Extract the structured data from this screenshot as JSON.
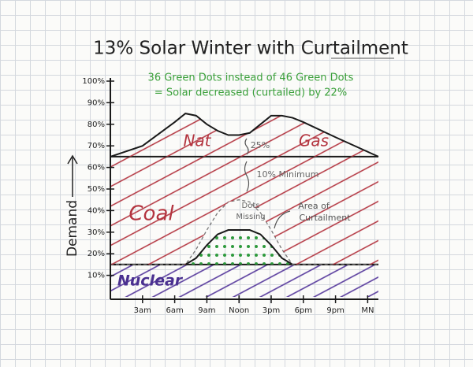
{
  "chart_data": {
    "type": "stacked_area",
    "title": "13% Solar Winter with Curtailment",
    "subtitle": [
      "36 Green Dots instead of 46 Green Dots",
      "= Solar decreased (curtailed) by 22%"
    ],
    "y_label": "Demand",
    "x": [
      0,
      3,
      6,
      7,
      8,
      9,
      10,
      11,
      12,
      13,
      14,
      15,
      16,
      17,
      18,
      21,
      25
    ],
    "xlim": [
      0,
      25
    ],
    "xticks": [
      {
        "value": 3,
        "label": "3am"
      },
      {
        "value": 6,
        "label": "6am"
      },
      {
        "value": 9,
        "label": "9am"
      },
      {
        "value": 12,
        "label": "Noon"
      },
      {
        "value": 15,
        "label": "3pm"
      },
      {
        "value": 18,
        "label": "6pm"
      },
      {
        "value": 21,
        "label": "9pm"
      },
      {
        "value": 24,
        "label": "MN"
      }
    ],
    "ylim": [
      0,
      100
    ],
    "yticks": [
      {
        "value": 10,
        "label": "10%"
      },
      {
        "value": 20,
        "label": "20%"
      },
      {
        "value": 30,
        "label": "30%"
      },
      {
        "value": 40,
        "label": "40%"
      },
      {
        "value": 50,
        "label": "50%"
      },
      {
        "value": 60,
        "label": "60%"
      },
      {
        "value": 70,
        "label": "70%"
      },
      {
        "value": 80,
        "label": "80%"
      },
      {
        "value": 90,
        "label": "90%"
      },
      {
        "value": 100,
        "label": "100%"
      }
    ],
    "series": [
      {
        "name": "Nuclear",
        "color": "#5a3d9e",
        "style": "hatch",
        "values": [
          15,
          15,
          15,
          15,
          15,
          15,
          15,
          15,
          15,
          15,
          15,
          15,
          15,
          15,
          15,
          15,
          15
        ]
      },
      {
        "color": "#2e9a3c",
        "style": "dots",
        "values": [
          0,
          0,
          0,
          0,
          3,
          9,
          14,
          16,
          16,
          16,
          14,
          9,
          3,
          0,
          0,
          0,
          0
        ]
      },
      {
        "color": "#8a8a8a",
        "style": "dashed",
        "values": [
          0,
          0,
          0,
          0,
          4,
          7,
          10,
          13,
          14,
          13,
          10,
          7,
          4,
          0,
          0,
          0,
          0
        ]
      },
      {
        "name": "Coal",
        "color": "#b3343f",
        "style": "hatch",
        "values": [
          50,
          50,
          50,
          50,
          43,
          34,
          26,
          21,
          20,
          21,
          26,
          34,
          43,
          50,
          50,
          50,
          50
        ]
      },
      {
        "color": "#b3343f",
        "style": "hatch",
        "values": [
          0,
          5,
          16,
          20,
          19,
          15,
          12,
          10,
          10,
          11,
          15,
          19,
          19,
          18,
          16,
          9,
          0
        ]
      }
    ],
    "annotations": [
      "Nat",
      "Gas",
      "25%",
      "10% Minimum",
      "Dots",
      "Missing",
      "Area of",
      "Curtailment"
    ]
  }
}
